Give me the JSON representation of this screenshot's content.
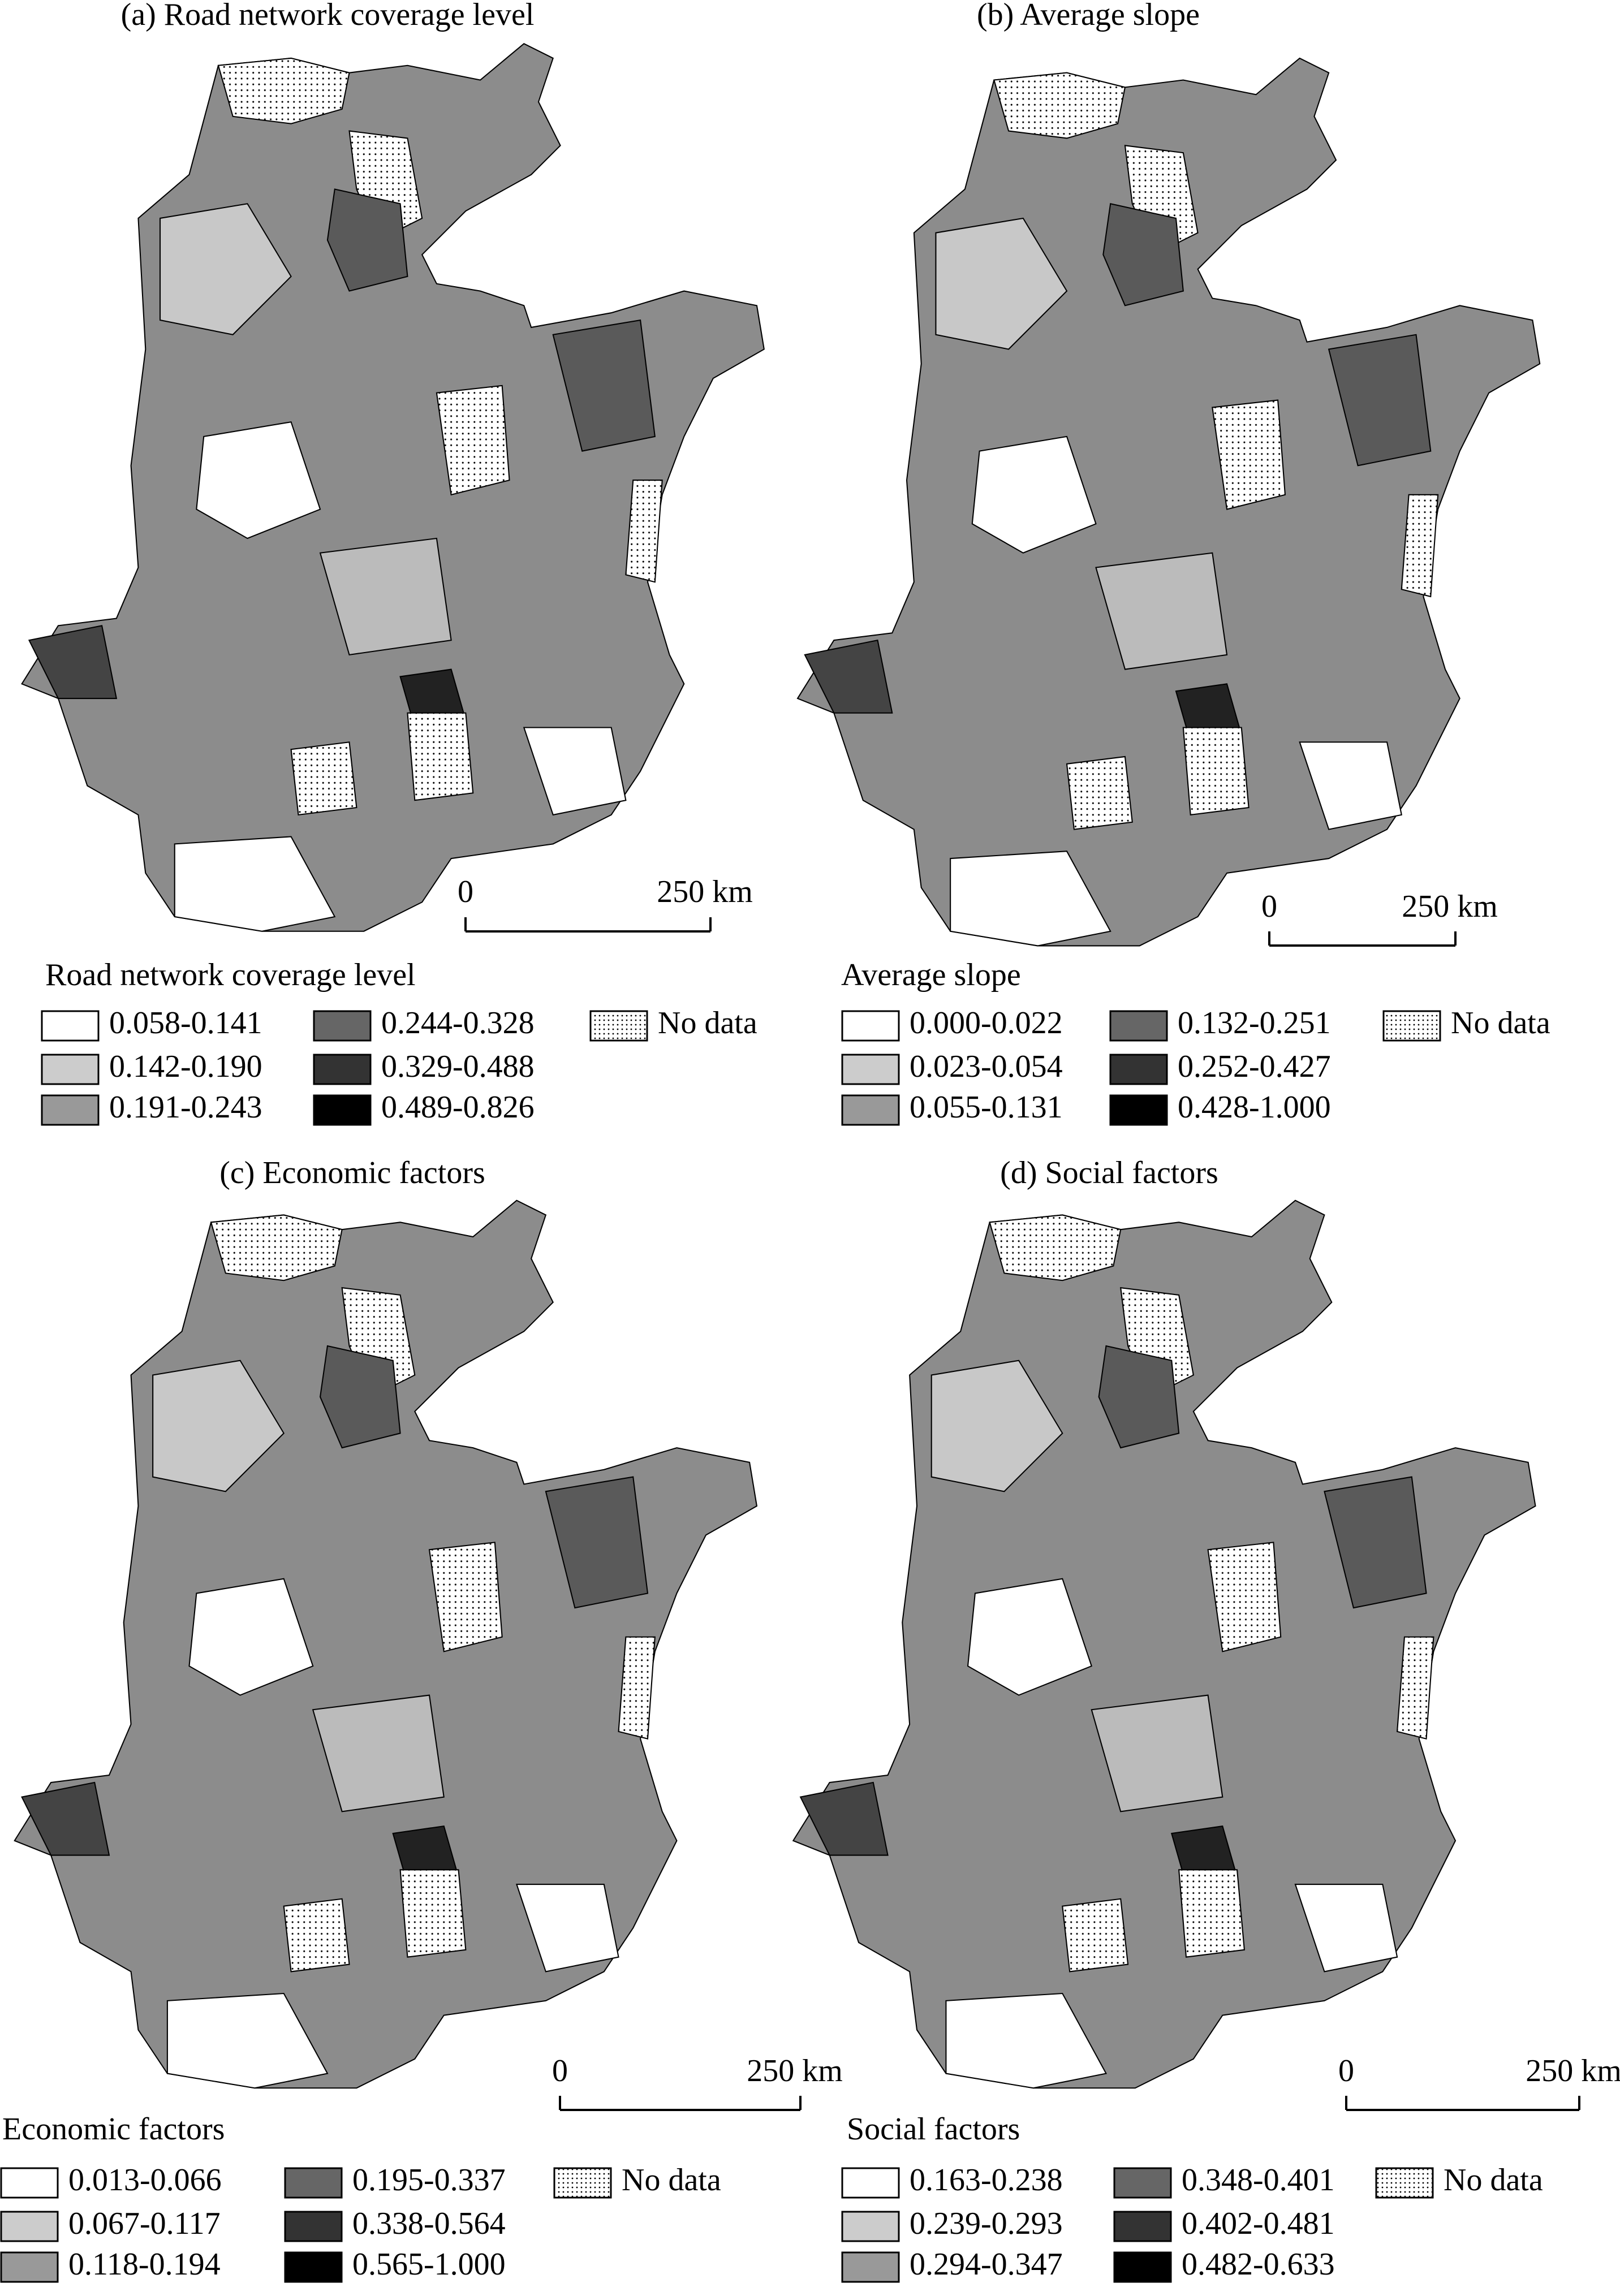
{
  "panels": [
    {
      "title": "(a) Road network coverage level",
      "legend_title": "Road network coverage level",
      "legend": [
        "0.058-0.141",
        "0.142-0.190",
        "0.191-0.243",
        "0.244-0.328",
        "0.329-0.488",
        "0.489-0.826",
        "No data"
      ],
      "scale": {
        "zero": "0",
        "distance": "250 km"
      }
    },
    {
      "title": "(b) Average slope",
      "legend_title": "Average slope",
      "legend": [
        "0.000-0.022",
        "0.023-0.054",
        "0.055-0.131",
        "0.132-0.251",
        "0.252-0.427",
        "0.428-1.000",
        "No data"
      ],
      "scale": {
        "zero": "0",
        "distance": "250 km"
      }
    },
    {
      "title": "(c) Economic factors",
      "legend_title": "Economic factors",
      "legend": [
        "0.013-0.066",
        "0.067-0.117",
        "0.118-0.194",
        "0.195-0.337",
        "0.338-0.564",
        "0.565-1.000",
        "No data"
      ],
      "scale": {
        "zero": "0",
        "distance": "250 km"
      }
    },
    {
      "title": "(d) Social factors",
      "legend_title": "Social factors",
      "legend": [
        "0.163-0.238",
        "0.239-0.293",
        "0.294-0.347",
        "0.348-0.401",
        "0.402-0.481",
        "0.482-0.633",
        "No data"
      ],
      "scale": {
        "zero": "0",
        "distance": "250 km"
      }
    }
  ]
}
